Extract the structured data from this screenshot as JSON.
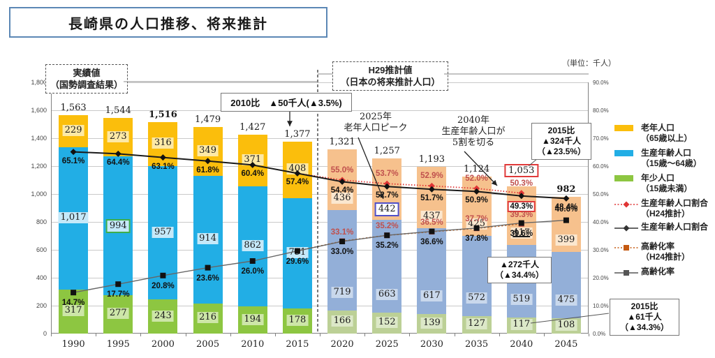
{
  "title": "長崎県の人口推移、将来推計",
  "unit_label": "（単位：千人）",
  "period_labels": {
    "actual": {
      "lines": [
        "実績値",
        "（国勢調査結果）"
      ]
    },
    "projection": {
      "lines": [
        "H29推計値",
        "（日本の将来推計人口）"
      ]
    }
  },
  "chart_data": {
    "type": "bar",
    "subtype": "stacked-bar-with-lines",
    "categories": [
      "1990",
      "1995",
      "2000",
      "2005",
      "2010",
      "2015",
      "2020",
      "2025",
      "2030",
      "2035",
      "2040",
      "2045"
    ],
    "projected_from_index": 6,
    "ylim_left": [
      0,
      1800
    ],
    "ylim_right_percent": [
      0,
      90
    ],
    "y_left_ticks": [
      "0",
      "200",
      "400",
      "600",
      "800",
      "1,000",
      "1,200",
      "1,400",
      "1,600",
      "1,800"
    ],
    "y_right_ticks": [
      "0.0%",
      "10.0%",
      "20.0%",
      "30.0%",
      "40.0%",
      "50.0%",
      "60.0%",
      "70.0%",
      "80.0%",
      "90.0%"
    ],
    "totals": [
      1563,
      1544,
      1516,
      1479,
      1427,
      1377,
      1321,
      1257,
      1193,
      1124,
      1053,
      982
    ],
    "series": [
      {
        "name": "老年人口（65歳以上）",
        "type": "bar",
        "values": [
          229,
          273,
          316,
          349,
          371,
          408,
          436,
          442,
          437,
          425,
          417,
          399
        ]
      },
      {
        "name": "生産年齢人口（15歳～64歳）",
        "type": "bar",
        "values": [
          1017,
          994,
          957,
          914,
          862,
          791,
          719,
          663,
          617,
          572,
          519,
          475
        ]
      },
      {
        "name": "年少人口（15歳未満）",
        "type": "bar",
        "values": [
          317,
          277,
          243,
          216,
          194,
          178,
          166,
          152,
          139,
          127,
          117,
          108
        ]
      },
      {
        "name": "生産年齢人口割合",
        "type": "line",
        "values": [
          65.1,
          64.4,
          63.1,
          61.8,
          60.4,
          57.4,
          54.4,
          52.7,
          51.7,
          50.9,
          49.3,
          48.4
        ]
      },
      {
        "name": "生産年齢人口割合（H24推計）",
        "type": "line",
        "values": [
          null,
          null,
          null,
          null,
          null,
          57.4,
          55.0,
          53.7,
          52.9,
          52.0,
          50.3,
          null
        ]
      },
      {
        "name": "高齢化率",
        "type": "line",
        "values": [
          14.7,
          17.7,
          20.8,
          23.6,
          26.0,
          29.6,
          33.0,
          35.2,
          36.6,
          37.8,
          39.6,
          40.6
        ]
      },
      {
        "name": "高齢化率（H24推計）",
        "type": "line",
        "values": [
          null,
          null,
          null,
          null,
          null,
          29.6,
          33.1,
          35.2,
          36.5,
          37.7,
          39.3,
          null
        ]
      }
    ],
    "highlights": {
      "totals": {
        "2": "bold",
        "10": "red-box",
        "11": "bold"
      },
      "elderly": {
        "7": "blue-box",
        "10": "underline"
      },
      "working": {
        "1": "green-box"
      },
      "working_ratio": {
        "10": "red-box"
      }
    }
  },
  "colors": {
    "elderly": "#fbbe0c",
    "working": "#22aee5",
    "young": "#8dc641",
    "elderly_proj": "#f6c18d",
    "working_proj": "#93afd8",
    "young_proj": "#bcd096",
    "chip_elderly": "#fde9a6",
    "chip_working": "#c5e9f9",
    "chip_young": "#cde6a8",
    "chip_elderly_proj": "#fbe7cf",
    "chip_working_proj": "#c9d8ec",
    "chip_young_proj": "#dce8c8",
    "line_working": "#1a1a1a",
    "line_working_h24": "#e03535",
    "line_aging": "#666666",
    "line_aging_h24": "#c55a11",
    "marker_aging_h24": "#c0504d",
    "h24_label": "#c0504d",
    "box_red": "#e03a3a",
    "box_blue": "#4f4fc8",
    "box_green": "#3fae49",
    "title_border": "#5b87b5"
  },
  "annotations": {
    "comparison_2010": {
      "text": "2010比　▲50千人(▲3.5%)"
    },
    "peak_2025": {
      "lines": [
        "2025年",
        "老年人口ピーク"
      ]
    },
    "half_2040": {
      "lines": [
        "2040年",
        "生産年齢人口が",
        "5割を切る"
      ]
    },
    "comparison_2015_total": {
      "lines": [
        "2015比",
        "▲324千人",
        "（▲23.5%）"
      ]
    },
    "working_decline": {
      "lines": [
        "▲272千人",
        "（▲34.4%）"
      ]
    },
    "comparison_2015_young": {
      "lines": [
        "2015比",
        "▲61千人",
        "（▲34.3%）"
      ]
    }
  },
  "legend": [
    {
      "label": "老年人口",
      "sub": "（65歳以上）",
      "swatch": "bar",
      "color": "#fbbe0c"
    },
    {
      "label": "生産年齢人口",
      "sub": "（15歳～64歳）",
      "swatch": "bar",
      "color": "#22aee5"
    },
    {
      "label": "年少人口",
      "sub": "（15歳未満）",
      "swatch": "bar",
      "color": "#8dc641"
    },
    {
      "label": "生産年齢人口割合",
      "sub": "（H24推計）",
      "swatch": "line-dotted-diamond",
      "color": "#e03535"
    },
    {
      "label": "生産年齢人口割合",
      "sub": "",
      "swatch": "line-solid-diamond",
      "color": "#333333"
    },
    {
      "label": "高齢化率",
      "sub": "（H24推計）",
      "swatch": "line-dotted-square",
      "color": "#c55a11"
    },
    {
      "label": "高齢化率",
      "sub": "",
      "swatch": "line-solid-square",
      "color": "#555555"
    }
  ]
}
